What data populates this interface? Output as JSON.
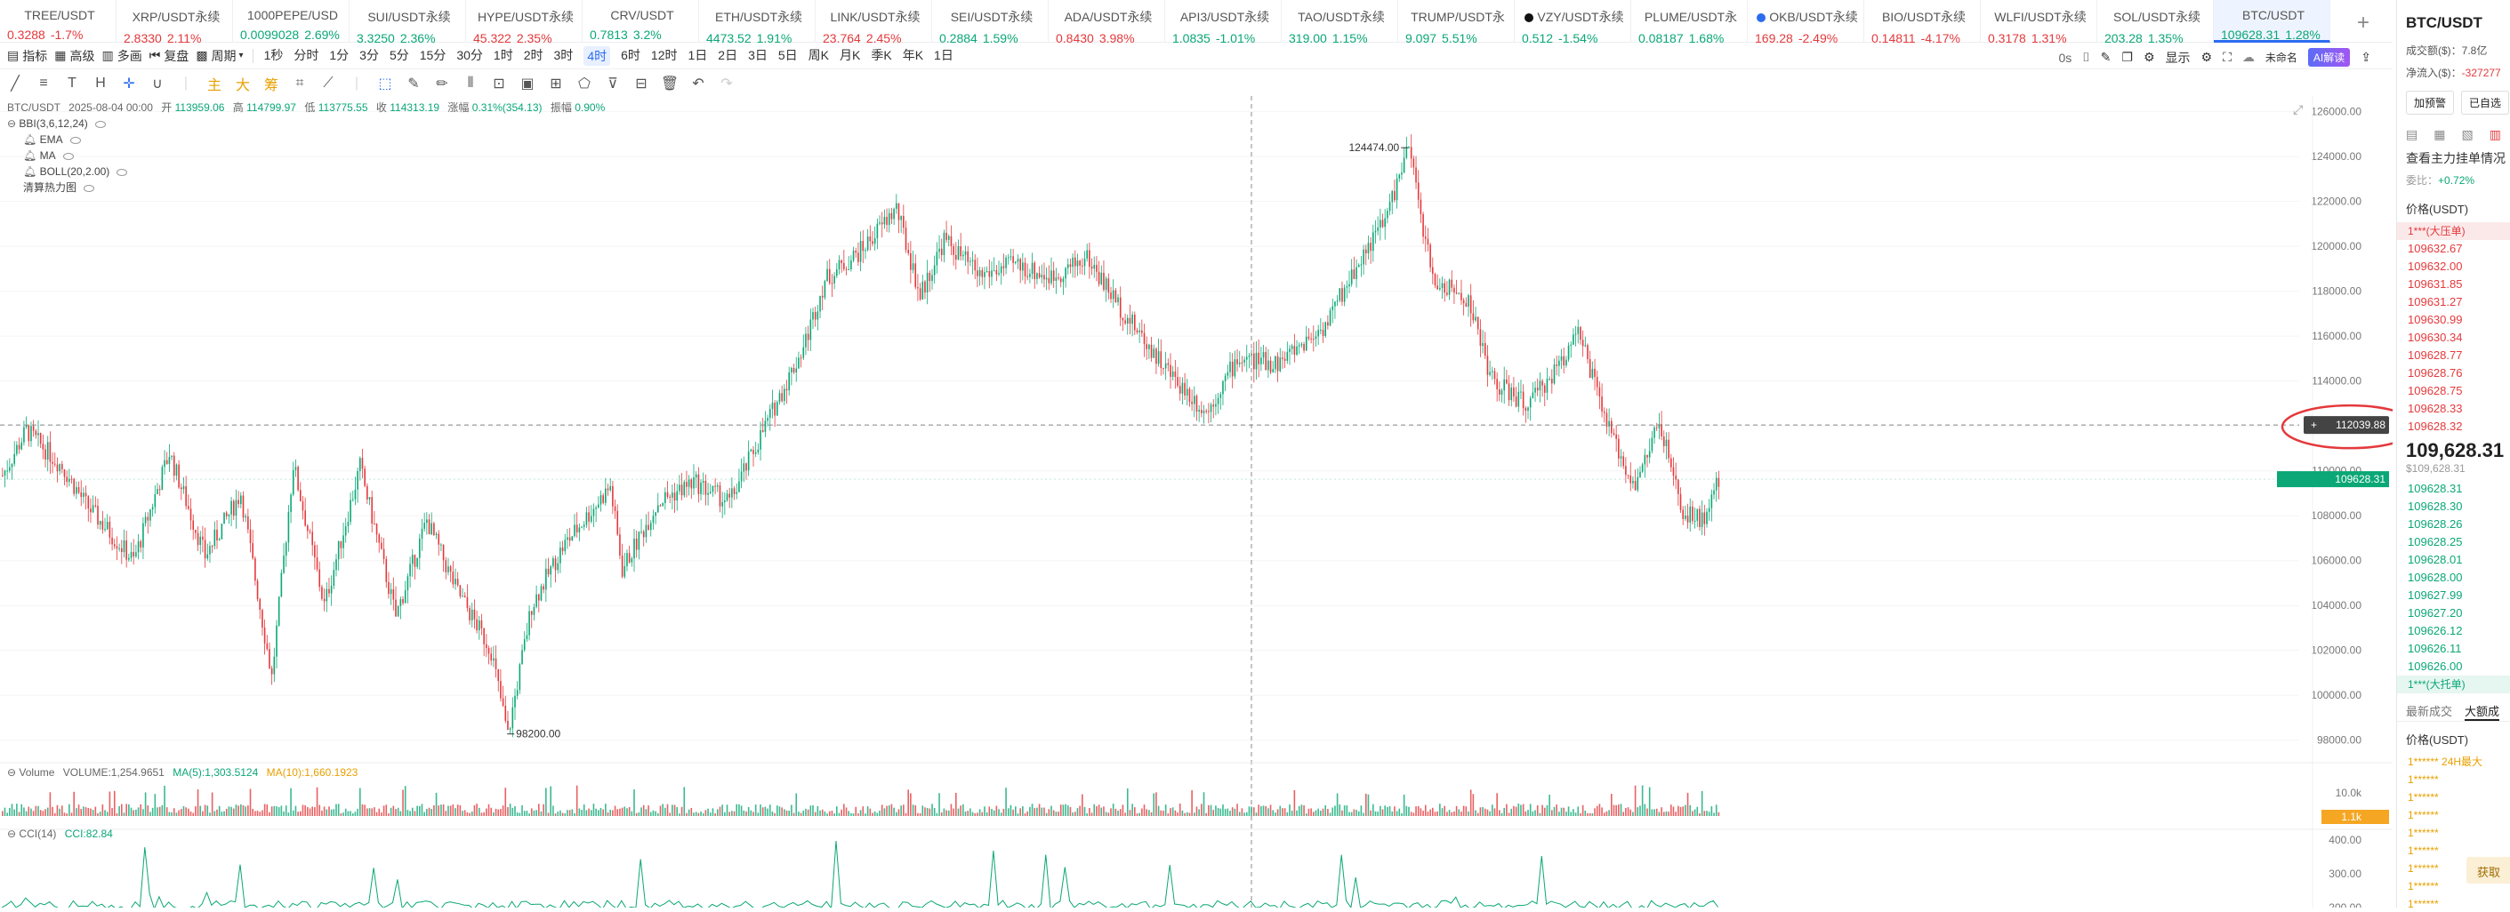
{
  "tickers": [
    {
      "sym": "TREE/USDT",
      "price": "0.3288",
      "chg": "-1.7%",
      "dir": "dn"
    },
    {
      "sym": "XRP/USDT永续",
      "price": "2.8330",
      "chg": "2.11%",
      "dir": "dn"
    },
    {
      "sym": "1000PEPE/USD",
      "price": "0.0099028",
      "chg": "2.69%",
      "dir": "up"
    },
    {
      "sym": "SUI/USDT永续",
      "price": "3.3250",
      "chg": "2.36%",
      "dir": "up"
    },
    {
      "sym": "HYPE/USDT永续",
      "price": "45.322",
      "chg": "2.35%",
      "dir": "dn"
    },
    {
      "sym": "CRV/USDT",
      "price": "0.7813",
      "chg": "3.2%",
      "dir": "up"
    },
    {
      "sym": "ETH/USDT永续",
      "price": "4473.52",
      "chg": "1.91%",
      "dir": "up"
    },
    {
      "sym": "LINK/USDT永续",
      "price": "23.764",
      "chg": "2.45%",
      "dir": "dn"
    },
    {
      "sym": "SEI/USDT永续",
      "price": "0.2884",
      "chg": "1.59%",
      "dir": "up"
    },
    {
      "sym": "ADA/USDT永续",
      "price": "0.8430",
      "chg": "3.98%",
      "dir": "dn"
    },
    {
      "sym": "API3/USDT永续",
      "price": "1.0835",
      "chg": "-1.01%",
      "dir": "up"
    },
    {
      "sym": "TAO/USDT永续",
      "price": "319.00",
      "chg": "1.15%",
      "dir": "up"
    },
    {
      "sym": "TRUMP/USDT永",
      "price": "9.097",
      "chg": "5.51%",
      "dir": "up"
    },
    {
      "sym": "VZY/USDT永续",
      "price": "0.512",
      "chg": "-1.54%",
      "dir": "up",
      "dot": true
    },
    {
      "sym": "PLUME/USDT永",
      "price": "0.08187",
      "chg": "1.68%",
      "dir": "up"
    },
    {
      "sym": "OKB/USDT永续",
      "price": "169.28",
      "chg": "-2.49%",
      "dir": "dn",
      "okb": true
    },
    {
      "sym": "BIO/USDT永续",
      "price": "0.14811",
      "chg": "-4.17%",
      "dir": "dn"
    },
    {
      "sym": "WLFI/USDT永续",
      "price": "0.3178",
      "chg": "1.31%",
      "dir": "dn"
    },
    {
      "sym": "SOL/USDT永续",
      "price": "203.28",
      "chg": "1.35%",
      "dir": "up"
    },
    {
      "sym": "BTC/USDT",
      "price": "109628.31",
      "chg": "1.28%",
      "dir": "up",
      "active": true
    }
  ],
  "toolbar": {
    "indicators": "指标",
    "advanced": "高级",
    "multi": "多画",
    "replay": "复盘",
    "period": "周期",
    "intervals": [
      "1秒",
      "分时",
      "1分",
      "3分",
      "5分",
      "15分",
      "30分",
      "1时",
      "2时",
      "3时",
      "4时",
      "6时",
      "12时",
      "1日",
      "2日",
      "3日",
      "5日",
      "周K",
      "月K",
      "季K",
      "年K",
      "1日"
    ],
    "selected_interval": "4时",
    "right_count": "0s",
    "display": "显示",
    "unnamed": "未命名",
    "ai": "AI解读"
  },
  "legend": {
    "symbol": "BTC/USDT",
    "date": "2025-08-04 00:00",
    "open_l": "开",
    "open": "113959.06",
    "high_l": "高",
    "high": "114799.97",
    "low_l": "低",
    "low": "113775.55",
    "close_l": "收",
    "close": "114313.19",
    "chg_l": "涨幅",
    "chg": "0.31%(354.13)",
    "amp_l": "振幅",
    "amp": "0.90%",
    "bbi": "BBI(3,6,12,24)",
    "ema": "EMA",
    "ma": "MA",
    "boll": "BOLL(20,2.00)",
    "heat": "清算热力图"
  },
  "chart_data": {
    "type": "candlestick",
    "ylim": [
      97000,
      126500
    ],
    "y_ticks": [
      98000,
      100000,
      102000,
      104000,
      106000,
      108000,
      110000,
      112000,
      114000,
      116000,
      118000,
      120000,
      122000,
      124000,
      126000
    ],
    "y_tick_labels": [
      "98000.00",
      "100000.00",
      "102000.00",
      "104000.00",
      "106000.00",
      "108000.00",
      "110000.00",
      "112000.00",
      "114000.00",
      "116000.00",
      "118000.00",
      "120000.00",
      "122000.00",
      "124000.00",
      "126000.00"
    ],
    "close_path": [
      [
        0,
        109800
      ],
      [
        10,
        111800
      ],
      [
        25,
        110200
      ],
      [
        35,
        108500
      ],
      [
        55,
        106000
      ],
      [
        70,
        110800
      ],
      [
        85,
        106200
      ],
      [
        100,
        109000
      ],
      [
        113,
        100800
      ],
      [
        122,
        110300
      ],
      [
        135,
        104000
      ],
      [
        150,
        110200
      ],
      [
        165,
        103500
      ],
      [
        178,
        107800
      ],
      [
        190,
        104800
      ],
      [
        205,
        102000
      ],
      [
        212,
        98200
      ],
      [
        222,
        104000
      ],
      [
        235,
        106600
      ],
      [
        255,
        109300
      ],
      [
        260,
        105600
      ],
      [
        275,
        108600
      ],
      [
        290,
        109500
      ],
      [
        305,
        108600
      ],
      [
        320,
        112000
      ],
      [
        336,
        115500
      ],
      [
        345,
        118500
      ],
      [
        360,
        119800
      ],
      [
        375,
        121700
      ],
      [
        385,
        117800
      ],
      [
        395,
        120300
      ],
      [
        410,
        118700
      ],
      [
        425,
        119200
      ],
      [
        440,
        118600
      ],
      [
        455,
        119500
      ],
      [
        470,
        117100
      ],
      [
        490,
        114300
      ],
      [
        505,
        112600
      ],
      [
        518,
        115000
      ],
      [
        535,
        114800
      ],
      [
        555,
        116500
      ],
      [
        570,
        119500
      ],
      [
        580,
        121200
      ],
      [
        590,
        124400
      ],
      [
        600,
        118500
      ],
      [
        615,
        117600
      ],
      [
        625,
        114000
      ],
      [
        640,
        112900
      ],
      [
        655,
        115000
      ],
      [
        660,
        116500
      ],
      [
        675,
        111500
      ],
      [
        685,
        109300
      ],
      [
        695,
        112200
      ],
      [
        705,
        108000
      ],
      [
        715,
        107900
      ],
      [
        720,
        109600
      ]
    ],
    "highs": [
      {
        "label": "124474.00",
        "x": 590,
        "price": 124474
      },
      {
        "label": "98200.00",
        "x": 212,
        "price": 98200
      }
    ],
    "crosshair_price": "112039.88",
    "last_price": "109628.31",
    "volume": {
      "label": "Volume",
      "vol": "VOLUME:1,254.9651",
      "ma5": "MA(5):1,303.5124",
      "ma10": "MA(10):1,660.1923",
      "y_ticks": [
        "10.0k"
      ],
      "current": "1.1k"
    },
    "cci": {
      "label": "CCI(14)",
      "value": "CCI:82.84",
      "y_ticks": [
        "400.00",
        "300.00",
        "200.00"
      ]
    }
  },
  "right_panel": {
    "title": "BTC/USDT",
    "vol_l": "成交额($)：",
    "vol": "7.8亿",
    "net_l": "净流入($)：",
    "net": "-327277",
    "btn1": "加预警",
    "btn2": "已自选",
    "depth_title": "查看主力挂单情况",
    "ratio_l": "委比：",
    "ratio": "+0.72%",
    "price_head": "价格(USDT)",
    "big_ask": "1***(大压单)",
    "asks": [
      "109632.67",
      "109632.00",
      "109631.85",
      "109631.27",
      "109630.99",
      "109630.34",
      "109628.77",
      "109628.76",
      "109628.75",
      "109628.33",
      "109628.32"
    ],
    "last": "109,628.31",
    "last_usd": "$109,628.31",
    "bids": [
      "109628.31",
      "109628.30",
      "109628.26",
      "109628.25",
      "109628.01",
      "109628.00",
      "109627.99",
      "109627.20",
      "109626.12",
      "109626.11",
      "109626.00"
    ],
    "big_bid": "1***(大托单)",
    "tab1": "最新成交",
    "tab2": "大额成",
    "trade_head": "价格(USDT)",
    "trades": [
      "1******",
      "1******",
      "1******",
      "1******",
      "1******",
      "1******",
      "1******",
      "1******",
      "1******"
    ],
    "big24": "1****** 24H最大",
    "get_btn": "获取"
  }
}
